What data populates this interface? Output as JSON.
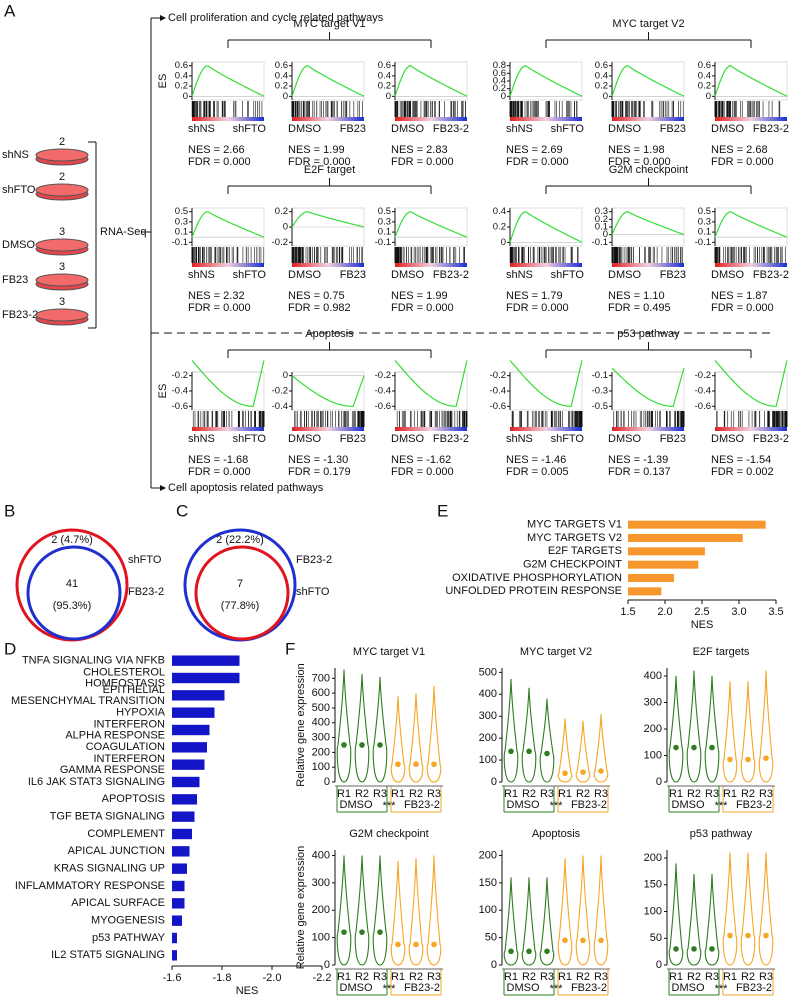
{
  "panel_a": {
    "label": "A",
    "samples": [
      {
        "name": "shNS",
        "count": 2,
        "color": "#1a1a6e"
      },
      {
        "name": "shFTO",
        "count": 2,
        "color": "#e0141e"
      },
      {
        "name": "DMSO",
        "count": 3,
        "color": "#111111"
      },
      {
        "name": "FB23",
        "count": 3,
        "color": "#3a9a1a"
      },
      {
        "name": "FB23-2",
        "count": 3,
        "color": "#1f2fd0"
      }
    ],
    "method": "RNA-Seq",
    "top_heading": "Cell proliferation and cycle related pathways",
    "bottom_heading": "Cell apoptosis related pathways",
    "es_label": "ES",
    "pathways": [
      {
        "name": "MYC target V1",
        "plots": [
          {
            "control": "shNS",
            "treatment": "shFTO",
            "yticks": [
              0,
              0.2,
              0.4,
              0.6
            ],
            "nes": "NES = 2.66",
            "fdr": "FDR = 0.000"
          },
          {
            "control": "DMSO",
            "treatment": "FB23",
            "yticks": [
              0,
              0.2,
              0.4,
              0.6
            ],
            "nes": "NES = 1.99",
            "fdr": "FDR = 0.000"
          },
          {
            "control": "DMSO",
            "treatment": "FB23-2",
            "yticks": [
              0,
              0.2,
              0.4,
              0.6
            ],
            "nes": "NES = 2.83",
            "fdr": "FDR = 0.000"
          }
        ]
      },
      {
        "name": "MYC target V2",
        "plots": [
          {
            "control": "shNS",
            "treatment": "shFTO",
            "yticks": [
              0,
              0.2,
              0.4,
              0.6,
              0.8
            ],
            "nes": "NES = 2.69",
            "fdr": "FDR = 0.000"
          },
          {
            "control": "DMSO",
            "treatment": "FB23",
            "yticks": [
              0,
              0.2,
              0.4,
              0.6
            ],
            "nes": "NES = 1.98",
            "fdr": "FDR = 0.000"
          },
          {
            "control": "DMSO",
            "treatment": "FB23-2",
            "yticks": [
              0,
              0.2,
              0.4,
              0.6
            ],
            "nes": "NES = 2.68",
            "fdr": "FDR = 0.000"
          }
        ]
      },
      {
        "name": "E2F target",
        "plots": [
          {
            "control": "shNS",
            "treatment": "shFTO",
            "yticks": [
              -0.1,
              0.1,
              0.3,
              0.5
            ],
            "nes": "NES = 2.32",
            "fdr": "FDR = 0.000"
          },
          {
            "control": "DMSO",
            "treatment": "FB23",
            "yticks": [
              -0.2,
              0,
              0.2
            ],
            "nes": "NES = 0.75",
            "fdr": "FDR = 0.982"
          },
          {
            "control": "DMSO",
            "treatment": "FB23-2",
            "yticks": [
              -0.1,
              0.1,
              0.3,
              0.5
            ],
            "nes": "NES = 1.99",
            "fdr": "FDR = 0.000"
          }
        ]
      },
      {
        "name": "G2M checkpoint",
        "plots": [
          {
            "control": "shNS",
            "treatment": "shFTO",
            "yticks": [
              0,
              0.2,
              0.4
            ],
            "nes": "NES = 1.79",
            "fdr": "FDR = 0.000"
          },
          {
            "control": "DMSO",
            "treatment": "FB23",
            "yticks": [
              -0.1,
              0,
              0.1,
              0.2,
              0.3
            ],
            "nes": "NES = 1.10",
            "fdr": "FDR = 0.495"
          },
          {
            "control": "DMSO",
            "treatment": "FB23-2",
            "yticks": [
              -0.1,
              0.1,
              0.3,
              0.5
            ],
            "nes": "NES = 1.87",
            "fdr": "FDR = 0.000"
          }
        ]
      },
      {
        "name": "Apoptosis",
        "plots": [
          {
            "control": "shNS",
            "treatment": "shFTO",
            "yticks": [
              -0.6,
              -0.4,
              -0.2
            ],
            "nes": "NES = -1.68",
            "fdr": "FDR = 0.000"
          },
          {
            "control": "DMSO",
            "treatment": "FB23",
            "yticks": [
              -0.4,
              -0.2,
              0
            ],
            "nes": "NES = -1.30",
            "fdr": "FDR = 0.179"
          },
          {
            "control": "DMSO",
            "treatment": "FB23-2",
            "yticks": [
              -0.6,
              -0.4,
              -0.2
            ],
            "nes": "NES = -1.62",
            "fdr": "FDR = 0.000"
          }
        ]
      },
      {
        "name": "p53 pathway",
        "plots": [
          {
            "control": "shNS",
            "treatment": "shFTO",
            "yticks": [
              -0.6,
              -0.4,
              -0.2
            ],
            "nes": "NES = -1.46",
            "fdr": "FDR = 0.005"
          },
          {
            "control": "DMSO",
            "treatment": "FB23",
            "yticks": [
              -0.5,
              -0.3,
              -0.1
            ],
            "nes": "NES = -1.39",
            "fdr": "FDR = 0.137"
          },
          {
            "control": "DMSO",
            "treatment": "FB23-2",
            "yticks": [
              -0.6,
              -0.4,
              -0.2
            ],
            "nes": "NES = -1.54",
            "fdr": "FDR = 0.002"
          }
        ]
      }
    ]
  },
  "panel_b": {
    "label": "B",
    "top_text": "2 (4.7%)",
    "center": "41",
    "center_pct": "(95.3%)",
    "outer_name": "shFTO",
    "inner_name": "FB23-2"
  },
  "panel_c": {
    "label": "C",
    "top_text": "2 (22.2%)",
    "center": "7",
    "center_pct": "(77.8%)",
    "outer_name": "FB23-2",
    "inner_name": "shFTO"
  },
  "panel_e": {
    "label": "E",
    "chart_data": {
      "type": "hbar",
      "categories": [
        "MYC TARGETS V1",
        "MYC TARGETS V2",
        "E2F TARGETS",
        "G2M CHECKPOINT",
        "OXIDATIVE PHOSPHORYLATION",
        "UNFOLDED PROTEIN RESPONSE"
      ],
      "values": [
        3.36,
        3.05,
        2.54,
        2.45,
        2.12,
        1.95
      ],
      "color": "#f7962d",
      "xlim": [
        1.5,
        3.5
      ],
      "xticks": [
        1.5,
        {
          "value": 2,
          "label": "2.0"
        },
        2.5,
        {
          "value": 3,
          "label": "3.0"
        },
        3.5
      ],
      "xlabel": "NES"
    }
  },
  "panel_d": {
    "label": "D",
    "chart_data": {
      "type": "hbar",
      "categories": [
        "TNFA SIGNALING VIA NFKB",
        "CHOLESTEROL\nHOMEOSTASIS",
        "EPITHELIAL\nMESENCHYMAL TRANSITION",
        "HYPOXIA",
        "INTERFERON\nALPHA RESPONSE",
        "COAGULATION",
        "INTERFERON\nGAMMA RESPONSE",
        "IL6 JAK STAT3 SIGNALING",
        "APOPTOSIS",
        "TGF BETA SIGNALING",
        "COMPLEMENT",
        "APICAL JUNCTION",
        "KRAS SIGNALING UP",
        "INFLAMMATORY RESPONSE",
        "APICAL SURFACE",
        "MYOGENESIS",
        "p53 PATHWAY",
        "IL2 STAT5 SIGNALING"
      ],
      "values": [
        -1.87,
        -1.87,
        -1.81,
        -1.77,
        -1.75,
        -1.74,
        -1.73,
        -1.71,
        -1.7,
        -1.69,
        -1.68,
        -1.67,
        -1.66,
        -1.65,
        -1.65,
        -1.64,
        -1.62,
        -1.62
      ],
      "color": "#1515c8",
      "xlim": [
        -1.6,
        -2.2
      ],
      "xticks": [
        -1.6,
        -1.8,
        {
          "value": -2,
          "label": "-2.0"
        },
        -2.2
      ],
      "xlabel": "NES"
    }
  },
  "panel_f": {
    "label": "F",
    "ylabel": "Relative gene expression",
    "replicates": [
      "R1",
      "R2",
      "R3"
    ],
    "groups": [
      {
        "name": "DMSO",
        "color": "#2e7d1e"
      },
      {
        "name": "FB23-2",
        "color": "#f5a623"
      }
    ],
    "significance": "***",
    "chart_data": [
      {
        "type": "violin",
        "title": "MYC target V1",
        "ylim": [
          0,
          770
        ],
        "yticks": [
          0,
          100,
          200,
          300,
          400,
          500,
          600,
          700
        ],
        "medians": [
          250,
          250,
          250,
          120,
          120,
          120
        ],
        "maxima": [
          760,
          730,
          710,
          580,
          600,
          650
        ]
      },
      {
        "type": "violin",
        "title": "MYC target V2",
        "ylim": [
          0,
          520
        ],
        "yticks": [
          0,
          100,
          200,
          300,
          400,
          500
        ],
        "medians": [
          140,
          140,
          130,
          40,
          45,
          50
        ],
        "maxima": [
          470,
          430,
          380,
          290,
          280,
          310
        ]
      },
      {
        "type": "violin",
        "title": "E2F targets",
        "ylim": [
          0,
          430
        ],
        "yticks": [
          0,
          100,
          200,
          300,
          400
        ],
        "medians": [
          130,
          130,
          130,
          85,
          85,
          90
        ],
        "maxima": [
          400,
          420,
          400,
          380,
          380,
          420
        ]
      },
      {
        "type": "violin",
        "title": "G2M checkpoint",
        "ylim": [
          0,
          420
        ],
        "yticks": [
          0,
          100,
          200,
          300,
          400
        ],
        "medians": [
          120,
          120,
          120,
          75,
          75,
          75
        ],
        "maxima": [
          400,
          400,
          400,
          380,
          390,
          400
        ]
      },
      {
        "type": "violin",
        "title": "Apoptosis",
        "ylim": [
          0,
          210
        ],
        "yticks": [
          0,
          50,
          100,
          150,
          200
        ],
        "medians": [
          25,
          25,
          25,
          45,
          45,
          45
        ],
        "maxima": [
          160,
          160,
          160,
          195,
          200,
          200
        ]
      },
      {
        "type": "violin",
        "title": "p53 pathway",
        "ylim": [
          0,
          215
        ],
        "yticks": [
          0,
          50,
          100,
          150,
          200
        ],
        "medians": [
          30,
          30,
          30,
          55,
          55,
          55
        ],
        "maxima": [
          190,
          170,
          170,
          210,
          210,
          210
        ]
      }
    ]
  }
}
